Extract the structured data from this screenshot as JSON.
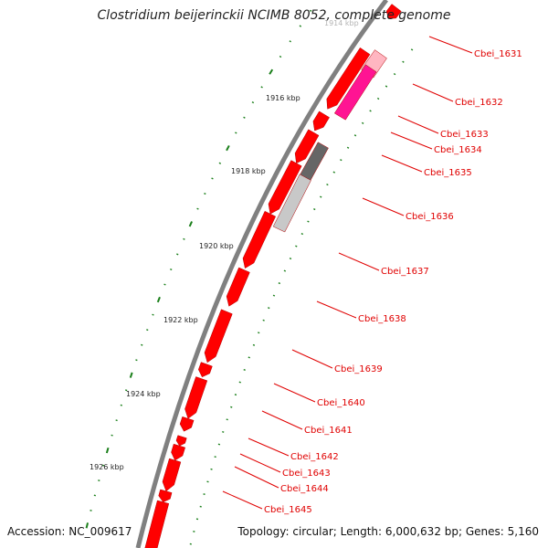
{
  "title": "Clostridium beijerinckii NCIMB 8052, complete genome",
  "accession_text": "Accession: NC_009617",
  "topology_text": "Topology: circular; Length: 6,000,632 bp; Genes: 5,160",
  "scale_labels": [
    "1914 kbp",
    "1916 kbp",
    "1918 kbp",
    "1920 kbp",
    "1922 kbp",
    "1924 kbp",
    "1926 kbp"
  ],
  "gene_labels": [
    "Cbei_1631",
    "Cbei_1632",
    "Cbei_1633",
    "Cbei_1634",
    "Cbei_1635",
    "Cbei_1636",
    "Cbei_1637",
    "Cbei_1638",
    "Cbei_1639",
    "Cbei_1640",
    "Cbei_1641",
    "Cbei_1642",
    "Cbei_1643",
    "Cbei_1644",
    "Cbei_1645"
  ],
  "colors": {
    "backbone": "#808080",
    "gene_red": "#ff0000",
    "gene_dark_red": "#b00000",
    "gene_pink": "#ff1493",
    "gene_light_pink": "#ffb6c1",
    "gene_dark_gray": "#666666",
    "gene_light_gray": "#c8c8c8",
    "tick_green": "#1a7f1a",
    "label_red": "#e00000"
  }
}
